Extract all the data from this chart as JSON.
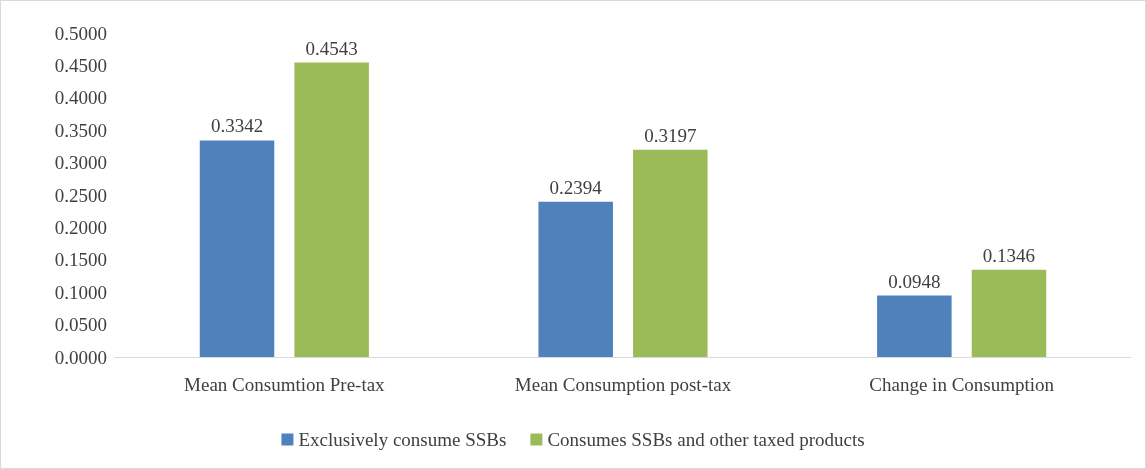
{
  "chart_data": {
    "type": "bar",
    "categories": [
      "Mean Consumtion Pre-tax",
      "Mean Consumption post-tax",
      "Change in Consumption"
    ],
    "series": [
      {
        "name": "Exclusively consume SSBs",
        "color": "#4f81bd",
        "values": [
          0.3342,
          0.2394,
          0.0948
        ]
      },
      {
        "name": "Consumes SSBs and other taxed products",
        "color": "#9bbb59",
        "values": [
          0.4543,
          0.3197,
          0.1346
        ]
      }
    ],
    "ylim": [
      0,
      0.5
    ],
    "yticks": [
      {
        "value": 0,
        "label": "0.0000"
      },
      {
        "value": 0.05,
        "label": "0.0500"
      },
      {
        "value": 0.1,
        "label": "0.1000"
      },
      {
        "value": 0.15,
        "label": "0.1500"
      },
      {
        "value": 0.2,
        "label": "0.2000"
      },
      {
        "value": 0.25,
        "label": "0.2500"
      },
      {
        "value": 0.3,
        "label": "0.3000"
      },
      {
        "value": 0.35,
        "label": "0.3500"
      },
      {
        "value": 0.4,
        "label": "0.4000"
      },
      {
        "value": 0.45,
        "label": "0.4500"
      },
      {
        "value": 0.5,
        "label": "0.5000"
      }
    ],
    "grid": false,
    "legend": "bottom",
    "data_labels": true
  }
}
